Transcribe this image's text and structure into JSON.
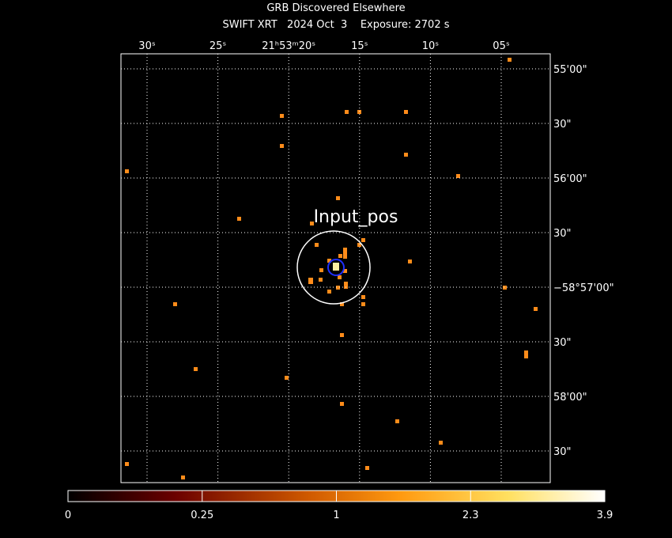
{
  "header": {
    "title": "GRB Discovered Elsewhere",
    "subtitle": "SWIFT XRT   2024 Oct  3    Exposure: 2702 s"
  },
  "image": {
    "source_label": "Input_pos",
    "ra_labels": [
      "30ˢ",
      "25ˢ",
      "21ʰ53ᵐ20ˢ",
      "15ˢ",
      "10ˢ",
      "05ˢ"
    ],
    "dec_labels": [
      "55'00\"",
      "30\"",
      "56'00\"",
      "30\"",
      "−58°57'00\"",
      "30\"",
      "58'00\"",
      "30\""
    ]
  },
  "colorbar": {
    "ticks": [
      0,
      0.25,
      1,
      2.3,
      3.9
    ]
  }
}
